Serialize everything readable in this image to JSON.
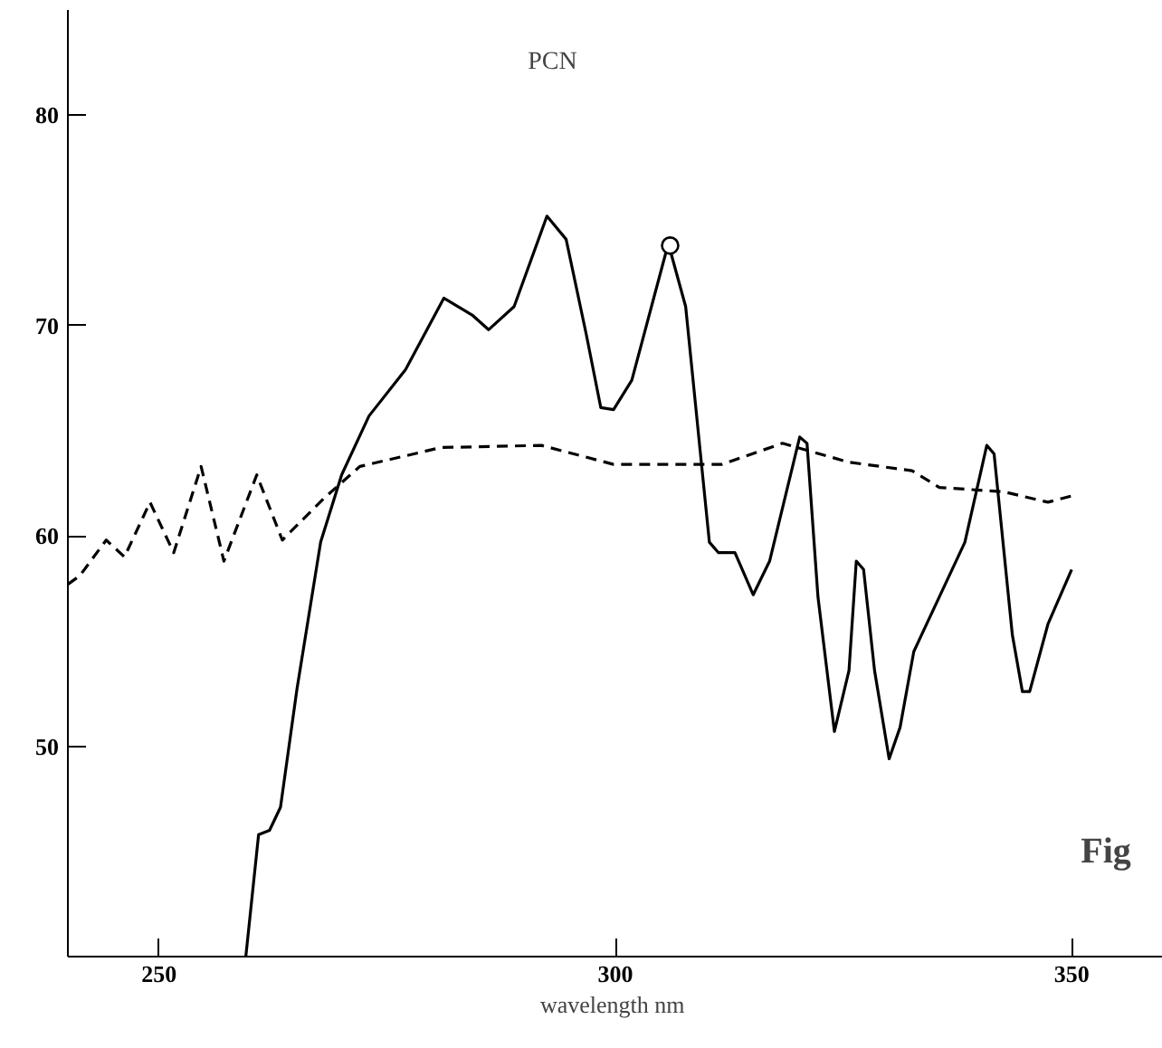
{
  "chart_data": {
    "type": "line",
    "title": "PCN",
    "xlabel": "wavelength  nm",
    "xlim": [
      240,
      360
    ],
    "ylim": [
      40,
      85
    ],
    "xticks": [
      250,
      300,
      350
    ],
    "yticks": [
      50,
      60,
      70,
      80
    ],
    "annotations": [
      "Fig"
    ],
    "series": [
      {
        "color": "#000000",
        "line_style": "solid",
        "x": [
          259.5,
          260.9,
          262.1,
          263.3,
          265.1,
          267.7,
          270.0,
          273.0,
          277.0,
          281.2,
          284.3,
          286.1,
          288.9,
          292.5,
          294.6,
          296.8,
          298.4,
          299.8,
          301.8,
          305.8,
          307.7,
          309.3,
          310.3,
          311.3,
          313.1,
          315.1,
          316.9,
          320.2,
          321.0,
          322.2,
          324.0,
          325.6,
          326.4,
          327.2,
          328.4,
          330.0,
          331.2,
          332.7,
          338.3,
          340.7,
          341.5,
          343.5,
          344.6,
          345.4,
          347.4,
          350.0
        ],
        "values": [
          40,
          45.8,
          46.0,
          47.1,
          52.7,
          59.7,
          62.9,
          65.7,
          67.9,
          71.3,
          70.5,
          69.8,
          70.9,
          75.2,
          74.1,
          69.6,
          66.1,
          66.0,
          67.4,
          73.9,
          70.9,
          64.0,
          59.7,
          59.2,
          59.2,
          57.2,
          58.8,
          64.7,
          64.4,
          57.1,
          50.7,
          53.6,
          58.8,
          58.4,
          53.6,
          49.4,
          50.9,
          54.5,
          59.7,
          64.3,
          63.9,
          55.3,
          52.6,
          52.6,
          55.8,
          58.4
        ]
      },
      {
        "color": "#000000",
        "line_style": "dashed",
        "x": [
          240,
          241.3,
          244.2,
          246.2,
          249.0,
          251.6,
          254.6,
          257.1,
          260.7,
          263.5,
          268.1,
          272.0,
          280.9,
          291.9,
          299.8,
          311.7,
          318.3,
          325.6,
          332.5,
          335.5,
          342.5,
          347.4,
          350.0
        ],
        "values": [
          57.7,
          58.1,
          59.8,
          59.0,
          61.6,
          59.2,
          63.3,
          58.8,
          62.9,
          59.8,
          61.8,
          63.3,
          64.2,
          64.3,
          63.4,
          63.4,
          64.4,
          63.5,
          63.1,
          62.3,
          62.1,
          61.6,
          61.9
        ]
      },
      {
        "type": "scatter",
        "color": "#000000",
        "marker": "circle",
        "x": [
          306.0
        ],
        "values": [
          73.8
        ]
      }
    ]
  }
}
